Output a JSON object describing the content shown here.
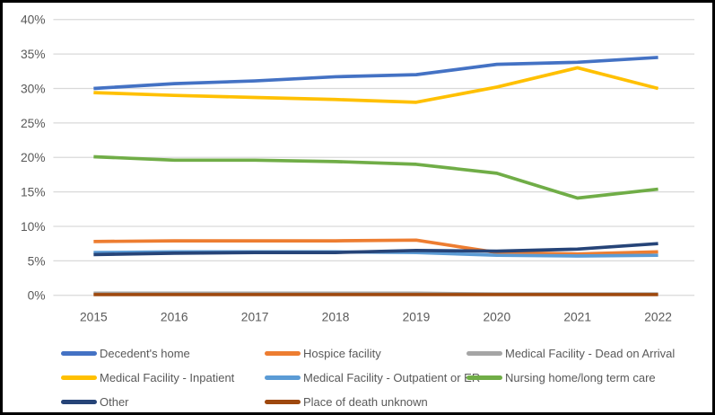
{
  "chart_data": {
    "type": "line",
    "title": "",
    "xlabel": "",
    "ylabel": "",
    "categories": [
      "2015",
      "2016",
      "2017",
      "2018",
      "2019",
      "2020",
      "2021",
      "2022"
    ],
    "series": [
      {
        "name": "Decedent's home",
        "color": "#4472C4",
        "values": [
          30.0,
          30.7,
          31.1,
          31.7,
          32.0,
          33.5,
          33.8,
          34.5
        ]
      },
      {
        "name": "Hospice facility",
        "color": "#ED7D31",
        "values": [
          7.8,
          7.9,
          7.9,
          7.9,
          8.0,
          6.2,
          6.0,
          6.3
        ]
      },
      {
        "name": "Medical Facility - Dead on Arrival",
        "color": "#A5A5A5",
        "values": [
          0.3,
          0.3,
          0.3,
          0.3,
          0.3,
          0.2,
          0.2,
          0.2
        ]
      },
      {
        "name": "Medical Facility - Inpatient",
        "color": "#FFC000",
        "values": [
          29.4,
          29.0,
          28.7,
          28.4,
          28.0,
          30.2,
          33.0,
          30.0
        ]
      },
      {
        "name": "Medical Facility - Outpatient or ER",
        "color": "#5B9BD5",
        "values": [
          6.2,
          6.3,
          6.3,
          6.3,
          6.2,
          5.8,
          5.7,
          5.8
        ]
      },
      {
        "name": "Nursing home/long term care",
        "color": "#70AD47",
        "values": [
          20.1,
          19.6,
          19.6,
          19.4,
          19.0,
          17.7,
          14.1,
          15.4
        ]
      },
      {
        "name": "Other",
        "color": "#264478",
        "values": [
          5.9,
          6.1,
          6.2,
          6.2,
          6.5,
          6.4,
          6.7,
          7.5
        ]
      },
      {
        "name": "Place of death unknown",
        "color": "#9E480E",
        "values": [
          0.1,
          0.1,
          0.1,
          0.1,
          0.1,
          0.1,
          0.1,
          0.1
        ]
      }
    ],
    "ylim": [
      0,
      40
    ],
    "ytick_step": 5,
    "ytick_suffix": "%",
    "ytick_labels": [
      "0%",
      "5%",
      "10%",
      "15%",
      "20%",
      "25%",
      "30%",
      "35%",
      "40%"
    ],
    "grid": true,
    "legend_position": "bottom",
    "legend_columns": 3
  },
  "style": {
    "background": "#FFFFFF",
    "frame_border_color": "#000000",
    "gridline_color": "#D9D9D9",
    "tick_label_color": "#595959",
    "legend_text_color": "#595959",
    "line_width": 3.75
  }
}
